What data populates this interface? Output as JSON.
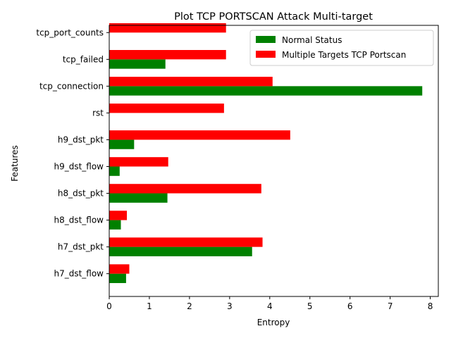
{
  "chart_data": {
    "type": "bar",
    "orientation": "horizontal",
    "title": "Plot TCP PORTSCAN Attack Multi-target",
    "xlabel": "Entropy",
    "ylabel": "Features",
    "xlim": [
      0,
      8.2
    ],
    "xticks": [
      "0",
      "1",
      "2",
      "3",
      "4",
      "5",
      "6",
      "7",
      "8"
    ],
    "categories": [
      "h7_dst_flow",
      "h7_dst_pkt",
      "h8_dst_flow",
      "h8_dst_pkt",
      "h9_dst_flow",
      "h9_dst_pkt",
      "rst",
      "tcp_connection",
      "tcp_failed",
      "tcp_port_counts"
    ],
    "series": [
      {
        "name": "Normal Status",
        "color": "#008000",
        "values": [
          0.42,
          3.56,
          0.29,
          1.45,
          0.26,
          0.62,
          0.0,
          7.8,
          1.4,
          0.0
        ]
      },
      {
        "name": "Multiple Targets TCP Portscan",
        "color": "#ff0000",
        "values": [
          0.5,
          3.82,
          0.44,
          3.79,
          1.47,
          4.51,
          2.86,
          4.07,
          2.91,
          2.91
        ]
      }
    ],
    "legend_position": "top-right",
    "grid": false
  }
}
